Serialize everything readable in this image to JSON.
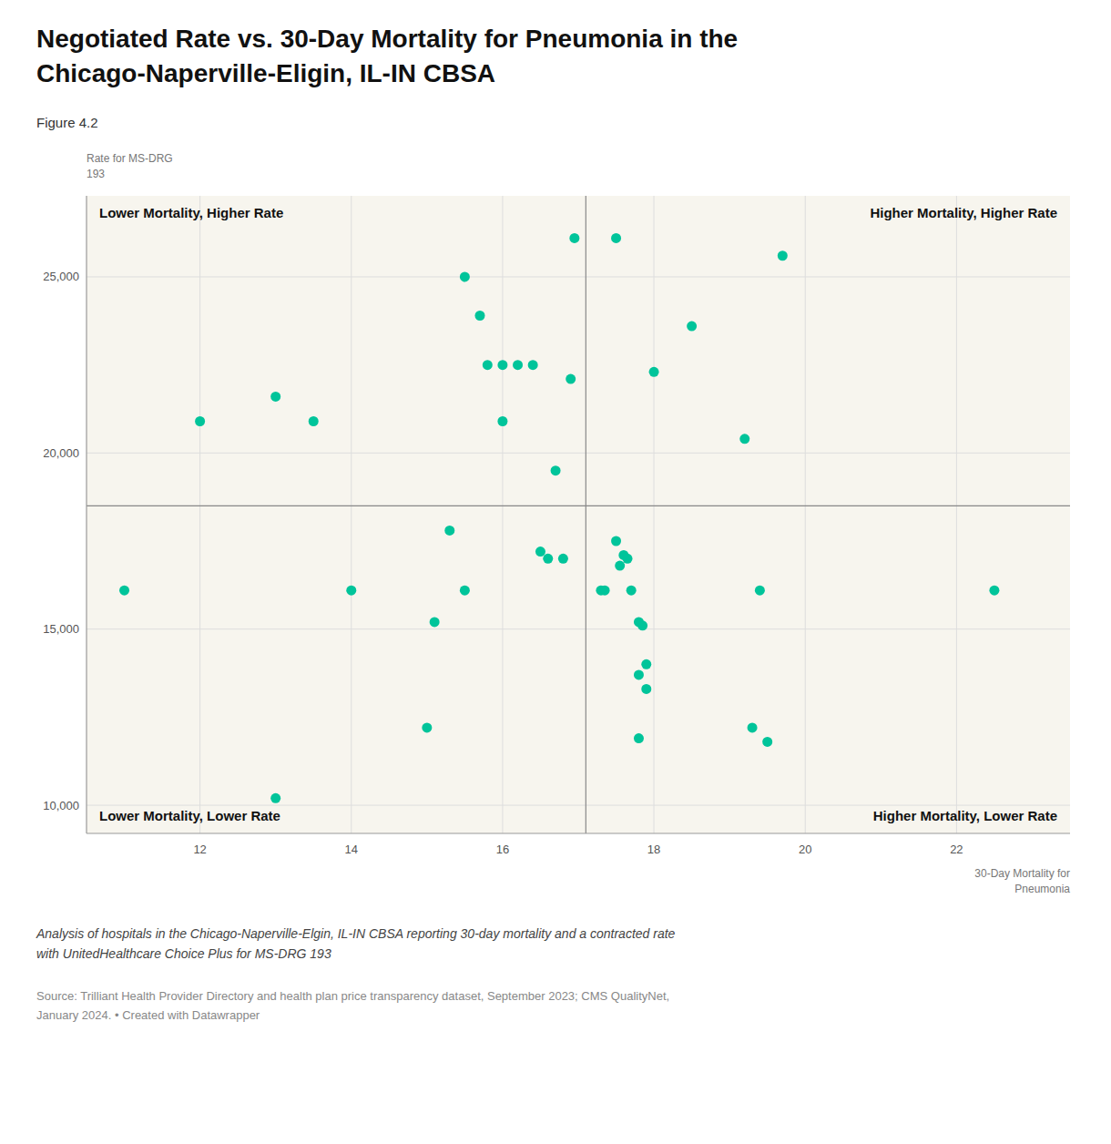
{
  "chart_data": {
    "type": "scatter",
    "title": "Negotiated Rate vs. 30-Day Mortality for Pneumonia in the\nChicago-Naperville-Eligin, IL-IN CBSA",
    "subtitle": "Figure 4.2",
    "y_label": "Rate for MS-DRG\n193",
    "x_label": "30-Day Mortality for\nPneumonia",
    "annotations": [
      "Lower Mortality, Higher Rate",
      "Higher Mortality, Higher Rate",
      "Lower Mortality, Lower Rate",
      "Higher Mortality, Lower Rate"
    ],
    "caption": "Analysis of hospitals in the Chicago-Naperville-Elgin, IL-IN CBSA reporting 30-day mortality and a contracted rate\nwith UnitedHealthcare Choice Plus for MS-DRG 193",
    "source": "Source: Trilliant Health Provider Directory and health plan price transparency dataset, September 2023; CMS QualityNet,\nJanuary 2024. • Created with Datawrapper",
    "color": "#00C49A",
    "grid": true,
    "reference_lines": {
      "x": 17.1,
      "y": 18500
    },
    "xlim": [
      10.5,
      23.5
    ],
    "ylim": [
      9200,
      27300
    ],
    "xticks": [
      12,
      14,
      16,
      18,
      20,
      22
    ],
    "yticks": [
      {
        "value": 10000,
        "label": "10,000"
      },
      {
        "value": 15000,
        "label": "15,000"
      },
      {
        "value": 20000,
        "label": "20,000"
      },
      {
        "value": 25000,
        "label": "25,000"
      }
    ],
    "x": [
      11.0,
      12.0,
      13.0,
      13.5,
      14.0,
      15.0,
      13.0,
      15.3,
      15.5,
      15.1,
      15.8,
      16.0,
      16.2,
      16.4,
      16.0,
      15.7,
      15.5,
      16.5,
      16.6,
      16.8,
      16.7,
      16.9,
      16.95,
      17.3,
      17.35,
      17.5,
      17.6,
      17.65,
      17.55,
      17.7,
      17.5,
      18.0,
      18.5,
      17.8,
      17.85,
      17.8,
      17.9,
      17.9,
      17.8,
      19.2,
      19.4,
      19.3,
      19.5,
      19.7,
      22.5
    ],
    "values": [
      16100,
      20900,
      21600,
      20900,
      16100,
      12200,
      10200,
      17800,
      16100,
      15200,
      22500,
      22500,
      22500,
      22500,
      20900,
      23900,
      25000,
      17200,
      17000,
      17000,
      19500,
      22100,
      26100,
      16100,
      16100,
      17500,
      17100,
      17000,
      16800,
      16100,
      26100,
      22300,
      23600,
      15200,
      15100,
      13700,
      14000,
      13300,
      11900,
      20400,
      16100,
      12200,
      11800,
      25600,
      16100
    ]
  }
}
